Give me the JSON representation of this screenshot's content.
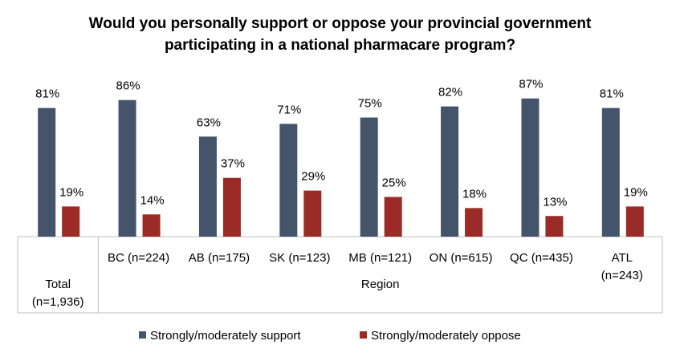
{
  "chart_data": {
    "type": "bar",
    "title": "Would you personally support or oppose your provincial government\nparticipating in a national pharmacare program?",
    "categories": [
      "Total\n(n=1,936)",
      "BC (n=224)",
      "AB (n=175)",
      "SK (n=123)",
      "MB (n=121)",
      "ON (n=615)",
      "QC (n=435)",
      "ATL (n=243)"
    ],
    "group_label": "Region",
    "series": [
      {
        "name": "Strongly/moderately support",
        "color": "#44546a",
        "values": [
          81,
          86,
          63,
          71,
          75,
          82,
          87,
          81
        ],
        "value_labels": [
          "81%",
          "86%",
          "63%",
          "71%",
          "75%",
          "82%",
          "87%",
          "81%"
        ]
      },
      {
        "name": "Strongly/moderately oppose",
        "color": "#9a2b27",
        "values": [
          19,
          14,
          37,
          29,
          25,
          18,
          13,
          19
        ],
        "value_labels": [
          "19%",
          "14%",
          "37%",
          "29%",
          "25%",
          "18%",
          "13%",
          "19%"
        ]
      }
    ],
    "legend": "bottom"
  }
}
